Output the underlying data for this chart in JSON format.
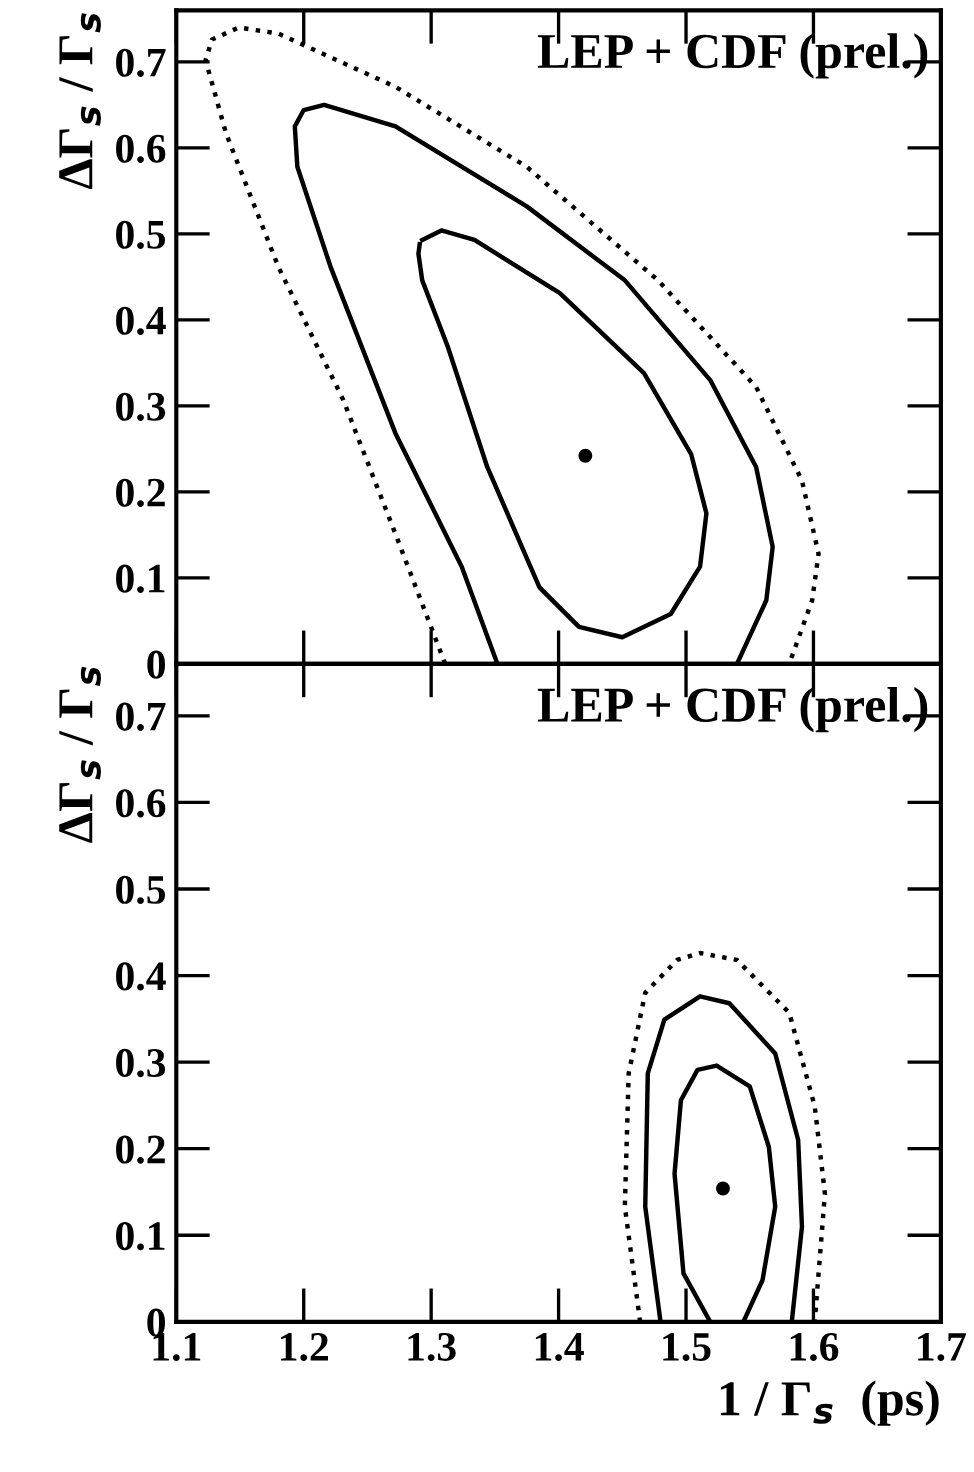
{
  "chart_data": [
    {
      "type": "line",
      "ylabel": "ΔΓ$_{s}$ / Γ$_{s}$",
      "annotations": [
        "LEP + CDF (prel.)"
      ],
      "xlim": [
        1.1,
        1.7
      ],
      "ylim": [
        0,
        0.76
      ],
      "xticks": [
        1.1,
        1.2,
        1.3,
        1.4,
        1.5,
        1.6,
        1.7
      ],
      "yticks": [
        0,
        0.1,
        0.2,
        0.3,
        0.4,
        0.5,
        0.6,
        0.7
      ],
      "tick_labels": "y",
      "grid": false,
      "legend": false,
      "series": [
        {
          "color": "#000000",
          "line_style": "dotted",
          "x": [
            1.311,
            1.272,
            1.231,
            1.18,
            1.139,
            1.123,
            1.128,
            1.149,
            1.18,
            1.272,
            1.375,
            1.478,
            1.555,
            1.591,
            1.604,
            1.599,
            1.581
          ],
          "values": [
            0,
            0.151,
            0.307,
            0.462,
            0.617,
            0.702,
            0.726,
            0.74,
            0.733,
            0.671,
            0.578,
            0.446,
            0.322,
            0.213,
            0.128,
            0.074,
            0
          ]
        },
        {
          "color": "#000000",
          "line_style": "solid",
          "x": [
            1.352,
            1.324,
            1.272,
            1.221,
            1.195,
            1.193,
            1.2,
            1.216,
            1.272,
            1.375,
            1.452,
            1.519,
            1.555,
            1.568,
            1.563,
            1.54
          ],
          "values": [
            0,
            0.113,
            0.268,
            0.462,
            0.578,
            0.625,
            0.644,
            0.65,
            0.625,
            0.532,
            0.446,
            0.33,
            0.229,
            0.136,
            0.074,
            0
          ]
        },
        {
          "color": "#000000",
          "line_style": "solid",
          "x": [
            1.293,
            1.308,
            1.334,
            1.401,
            1.467,
            1.504,
            1.516,
            1.511,
            1.488,
            1.45,
            1.416,
            1.385,
            1.344,
            1.313,
            1.293,
            1.29,
            1.291
          ],
          "values": [
            0.493,
            0.504,
            0.493,
            0.431,
            0.338,
            0.244,
            0.175,
            0.113,
            0.058,
            0.031,
            0.043,
            0.089,
            0.229,
            0.369,
            0.446,
            0.477,
            0.488
          ]
        },
        {
          "type": "scatter",
          "color": "#000000",
          "marker": "circle",
          "x": [
            1.421
          ],
          "values": [
            0.242
          ]
        }
      ]
    },
    {
      "type": "line",
      "xlabel": "1 / Γ$_{s}$  (ps)",
      "ylabel": "ΔΓ$_{s}$ / Γ$_{s}$",
      "annotations": [
        "LEP + CDF (prel.)"
      ],
      "xlim": [
        1.1,
        1.7
      ],
      "ylim": [
        0,
        0.76
      ],
      "xticks": [
        1.1,
        1.2,
        1.3,
        1.4,
        1.5,
        1.6,
        1.7
      ],
      "yticks": [
        0,
        0.1,
        0.2,
        0.3,
        0.4,
        0.5,
        0.6,
        0.7
      ],
      "grid": false,
      "legend": false,
      "series": [
        {
          "color": "#000000",
          "line_style": "dotted",
          "x": [
            1.464,
            1.452,
            1.455,
            1.468,
            1.493,
            1.511,
            1.54,
            1.581,
            1.601,
            1.609,
            1.601
          ],
          "values": [
            0,
            0.133,
            0.287,
            0.38,
            0.418,
            0.426,
            0.418,
            0.357,
            0.249,
            0.148,
            0
          ]
        },
        {
          "color": "#000000",
          "line_style": "solid",
          "x": [
            1.48,
            1.468,
            1.47,
            1.483,
            1.511,
            1.534,
            1.57,
            1.588,
            1.591,
            1.583
          ],
          "values": [
            0,
            0.133,
            0.287,
            0.349,
            0.376,
            0.368,
            0.31,
            0.21,
            0.11,
            0
          ]
        },
        {
          "color": "#000000",
          "line_style": "solid",
          "x": [
            1.519,
            1.498,
            1.491,
            1.496,
            1.509,
            1.524,
            1.55,
            1.565,
            1.57,
            1.56,
            1.545
          ],
          "values": [
            0,
            0.056,
            0.171,
            0.256,
            0.291,
            0.296,
            0.272,
            0.202,
            0.133,
            0.048,
            0
          ]
        },
        {
          "type": "scatter",
          "color": "#000000",
          "marker": "circle",
          "x": [
            1.529
          ],
          "values": [
            0.154
          ]
        }
      ]
    }
  ]
}
